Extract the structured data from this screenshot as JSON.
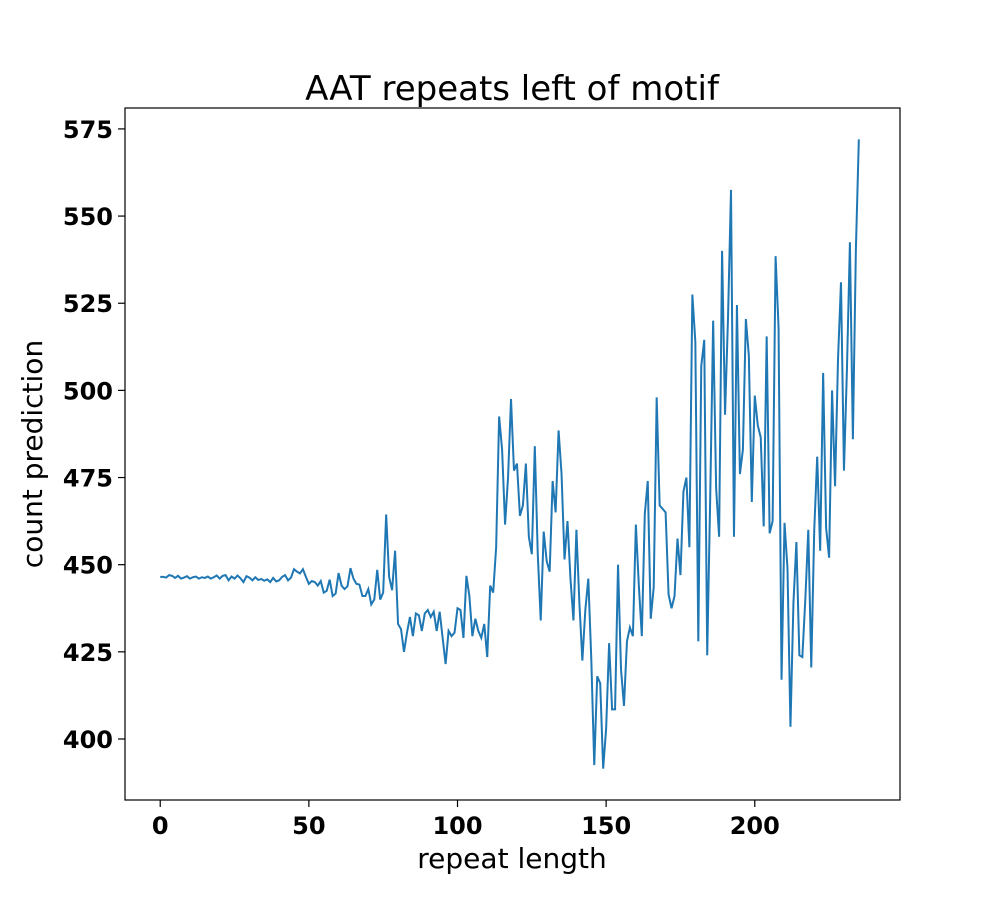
{
  "chart_data": {
    "type": "line",
    "title": "AAT repeats left of motif",
    "x_label": "repeat length",
    "y_label": "count prediction",
    "color": "#1f77b4",
    "x": [
      0,
      1,
      2,
      3,
      4,
      5,
      6,
      7,
      8,
      9,
      10,
      11,
      12,
      13,
      14,
      15,
      16,
      17,
      18,
      19,
      20,
      21,
      22,
      23,
      24,
      25,
      26,
      27,
      28,
      29,
      30,
      31,
      32,
      33,
      34,
      35,
      36,
      37,
      38,
      39,
      40,
      41,
      42,
      43,
      44,
      45,
      46,
      47,
      48,
      49,
      50,
      51,
      52,
      53,
      54,
      55,
      56,
      57,
      58,
      59,
      60,
      61,
      62,
      63,
      64,
      65,
      66,
      67,
      68,
      69,
      70,
      71,
      72,
      73,
      74,
      75,
      76,
      77,
      78,
      79,
      80,
      81,
      82,
      83,
      84,
      85,
      86,
      87,
      88,
      89,
      90,
      91,
      92,
      93,
      94,
      95,
      96,
      97,
      98,
      99,
      100,
      101,
      102,
      103,
      104,
      105,
      106,
      107,
      108,
      109,
      110,
      111,
      112,
      113,
      114,
      115,
      116,
      117,
      118,
      119,
      120,
      121,
      122,
      123,
      124,
      125,
      126,
      127,
      128,
      129,
      130,
      131,
      132,
      133,
      134,
      135,
      136,
      137,
      138,
      139,
      140,
      141,
      142,
      143,
      144,
      145,
      146,
      147,
      148,
      149,
      150,
      151,
      152,
      153,
      154,
      155,
      156,
      157,
      158,
      159,
      160,
      161,
      162,
      163,
      164,
      165,
      166,
      167,
      168,
      169,
      170,
      171,
      172,
      173,
      174,
      175,
      176,
      177,
      178,
      179,
      180,
      181,
      182,
      183,
      184,
      185,
      186,
      187,
      188,
      189,
      190,
      191,
      192,
      193,
      194,
      195,
      196,
      197,
      198,
      199,
      200,
      201,
      202,
      203,
      204,
      205,
      206,
      207,
      208,
      209,
      210,
      211,
      212,
      213,
      214,
      215,
      216,
      217,
      218,
      219,
      220,
      221,
      222,
      223,
      224,
      225,
      226,
      227,
      228,
      229,
      230,
      231,
      232,
      233,
      234,
      235
    ],
    "values": [
      446.5,
      446.5,
      446.3,
      447,
      446.8,
      446.2,
      446.8,
      446,
      446.3,
      446.7,
      446,
      446.4,
      446.6,
      446,
      446.4,
      446.2,
      446.6,
      446,
      446.4,
      446.9,
      446,
      446.8,
      447,
      445.5,
      446.6,
      446,
      446.9,
      446.1,
      445,
      446.7,
      446.3,
      445.5,
      446.4,
      445.6,
      445.9,
      445.4,
      445.8,
      445,
      446.2,
      445.2,
      445.5,
      446.5,
      447,
      445.5,
      446.3,
      448.7,
      448,
      447.5,
      448.7,
      446.5,
      444.5,
      445.3,
      445,
      444,
      445.3,
      442,
      442.5,
      445.7,
      441,
      441.7,
      447.6,
      444,
      443,
      443.8,
      449,
      446,
      444.5,
      444.3,
      441,
      441,
      443,
      438.6,
      440,
      448.5,
      440,
      442,
      464.4,
      446.5,
      442.7,
      454,
      433,
      431.5,
      425,
      430.5,
      435,
      429.5,
      436,
      435.5,
      431,
      436,
      437,
      435,
      436.5,
      431,
      436.5,
      429,
      421.5,
      431,
      429.5,
      430.5,
      437.5,
      437,
      429,
      446.8,
      441,
      429.5,
      434.5,
      431,
      429,
      433,
      423.5,
      444,
      442,
      455,
      492.5,
      483,
      461.5,
      475,
      497.5,
      477,
      479,
      464,
      467,
      479,
      458,
      453,
      484,
      453,
      434,
      459.5,
      451,
      448,
      474,
      465,
      488.5,
      476,
      451.5,
      462.5,
      446,
      434,
      460,
      439,
      422.5,
      437,
      446,
      423,
      392.5,
      418,
      416,
      391.5,
      403,
      427.5,
      408.5,
      408.5,
      450,
      420,
      409.5,
      428,
      432,
      429.5,
      461.5,
      444,
      429.5,
      464.5,
      474,
      434.5,
      443.5,
      498,
      467,
      466,
      465,
      441.5,
      437.5,
      441,
      457.5,
      447,
      471,
      475,
      455,
      527.5,
      514,
      428,
      507,
      514.5,
      424,
      469,
      520,
      472,
      458,
      540,
      493,
      521,
      557.5,
      458,
      524.5,
      476,
      483,
      520.5,
      510,
      468,
      498.5,
      490,
      486.5,
      461,
      515.5,
      459,
      462.5,
      538.5,
      518,
      417,
      462,
      449,
      403.5,
      439,
      456.5,
      424,
      423.5,
      440,
      460,
      420.5,
      460,
      481,
      454,
      505,
      460.5,
      452,
      500,
      472.5,
      509,
      531,
      477,
      506,
      542.5,
      486,
      540,
      572
    ],
    "xlim": [
      -11.85,
      248.85
    ],
    "xticks": [
      0,
      50,
      100,
      150,
      200
    ],
    "ylim": [
      382.5,
      581
    ],
    "yticks": [
      400,
      425,
      450,
      475,
      500,
      525,
      550,
      575
    ]
  }
}
